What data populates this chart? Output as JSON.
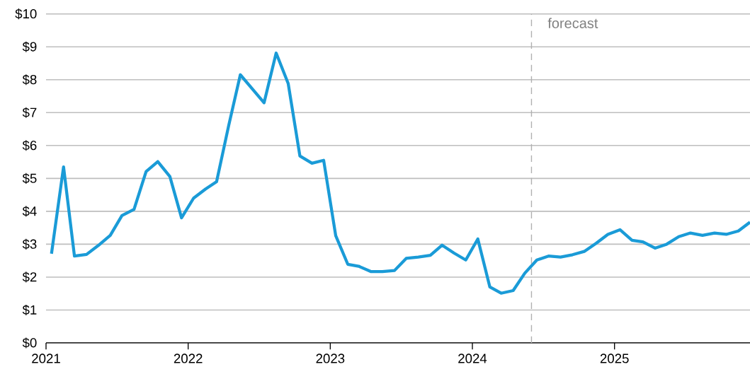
{
  "chart_data": {
    "type": "line",
    "x": [
      "2021-01-15",
      "2021-02-15",
      "2021-03-15",
      "2021-04-15",
      "2021-05-15",
      "2021-06-15",
      "2021-07-15",
      "2021-08-15",
      "2021-09-15",
      "2021-10-15",
      "2021-11-15",
      "2021-12-15",
      "2022-01-15",
      "2022-02-15",
      "2022-03-15",
      "2022-04-15",
      "2022-05-15",
      "2022-06-15",
      "2022-07-15",
      "2022-08-15",
      "2022-09-15",
      "2022-10-15",
      "2022-11-15",
      "2022-12-15",
      "2023-01-15",
      "2023-02-15",
      "2023-03-15",
      "2023-04-15",
      "2023-05-15",
      "2023-06-15",
      "2023-07-15",
      "2023-08-15",
      "2023-09-15",
      "2023-10-15",
      "2023-11-15",
      "2023-12-15",
      "2024-01-15",
      "2024-02-15",
      "2024-03-15",
      "2024-04-15",
      "2024-05-15",
      "2024-06-15",
      "2024-07-15",
      "2024-08-15",
      "2024-09-15",
      "2024-10-15",
      "2024-11-15",
      "2024-12-15",
      "2025-01-15",
      "2025-02-15",
      "2025-03-15",
      "2025-04-15",
      "2025-05-15",
      "2025-06-15",
      "2025-07-15",
      "2025-08-15",
      "2025-09-15",
      "2025-10-15",
      "2025-11-15",
      "2025-12-15"
    ],
    "series": [
      {
        "color": "#1a9bd7",
        "values": [
          2.71,
          5.35,
          2.64,
          2.69,
          2.96,
          3.27,
          3.87,
          4.06,
          5.21,
          5.51,
          5.06,
          3.8,
          4.4,
          4.68,
          4.9,
          6.6,
          8.15,
          7.72,
          7.3,
          8.81,
          7.88,
          5.68,
          5.46,
          5.55,
          3.26,
          2.39,
          2.33,
          2.17,
          2.17,
          2.2,
          2.57,
          2.61,
          2.66,
          2.97,
          2.73,
          2.52,
          3.16,
          1.7,
          1.51,
          1.59,
          2.12,
          2.52,
          2.64,
          2.61,
          2.68,
          2.78,
          3.03,
          3.3,
          3.44,
          3.12,
          3.07,
          2.88,
          3.0,
          3.23,
          3.34,
          3.27,
          3.34,
          3.3,
          3.4,
          3.67
        ]
      }
    ],
    "xlim": [
      "2021-01-01",
      "2025-12-15"
    ],
    "xticks": [
      "2021",
      "2022",
      "2023",
      "2024",
      "2025"
    ],
    "ylim": [
      0,
      10
    ],
    "yticks": [
      {
        "value": 0,
        "label": "$0"
      },
      {
        "value": 1,
        "label": "$1"
      },
      {
        "value": 2,
        "label": "$2"
      },
      {
        "value": 3,
        "label": "$3"
      },
      {
        "value": 4,
        "label": "$4"
      },
      {
        "value": 5,
        "label": "$5"
      },
      {
        "value": 6,
        "label": "$6"
      },
      {
        "value": 7,
        "label": "$7"
      },
      {
        "value": 8,
        "label": "$8"
      },
      {
        "value": 9,
        "label": "$9"
      },
      {
        "value": 10,
        "label": "$10"
      }
    ],
    "grid": "y",
    "ref_lines": [
      {
        "axis": "x",
        "value": "2024-06-01",
        "label": "forecast",
        "color": "#b0b0b0",
        "line_style": "dashed"
      }
    ]
  }
}
